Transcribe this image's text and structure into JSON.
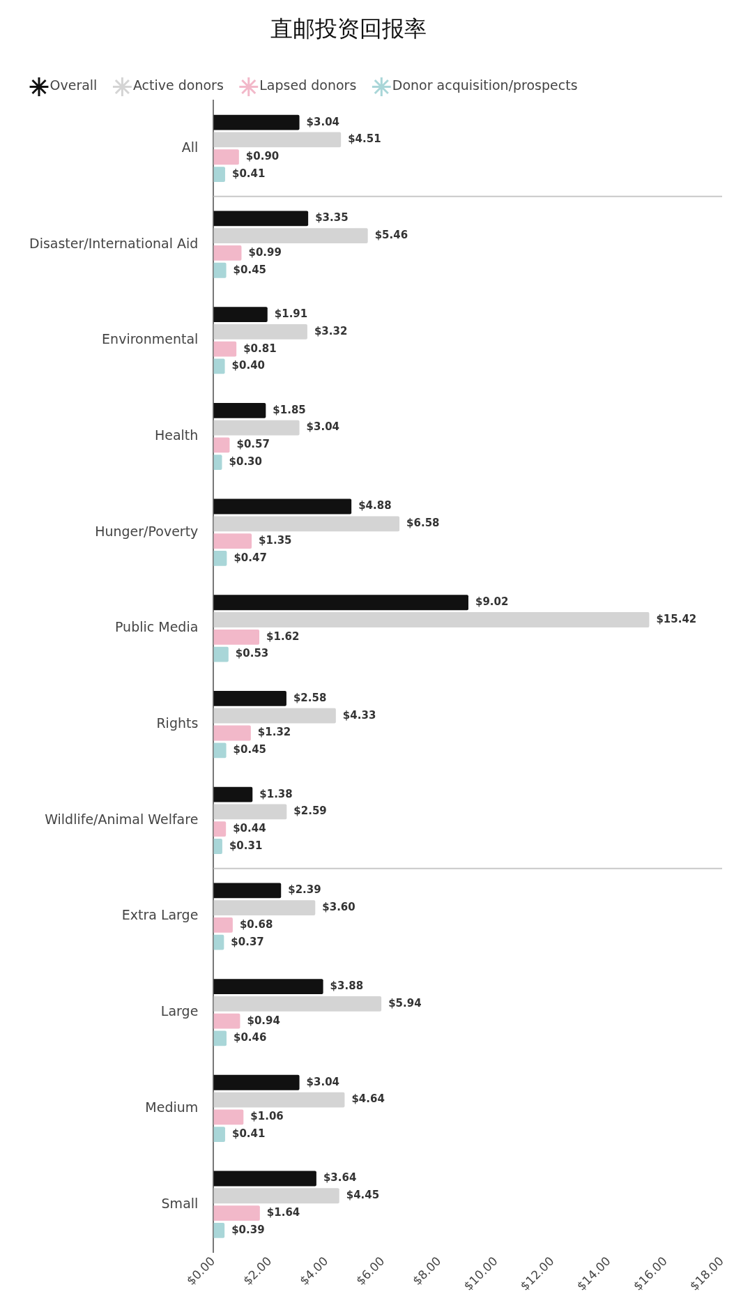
{
  "chart_data": {
    "type": "bar",
    "orientation": "horizontal",
    "title": "直邮投资回报率",
    "legend": "top",
    "categories": [
      "All",
      "Disaster/International Aid",
      "Environmental",
      "Health",
      "Hunger/Poverty",
      "Public Media",
      "Rights",
      "Wildlife/Animal Welfare",
      "Extra Large",
      "Large",
      "Medium",
      "Small"
    ],
    "series": [
      {
        "name": "Overall",
        "color": "#111111",
        "values": [
          3.04,
          3.35,
          1.91,
          1.85,
          4.88,
          9.02,
          2.58,
          1.38,
          2.39,
          3.88,
          3.04,
          3.64
        ],
        "value_labels": [
          "$3.04",
          "$3.35",
          "$1.91",
          "$1.85",
          "$4.88",
          "$9.02",
          "$2.58",
          "$1.38",
          "$2.39",
          "$3.88",
          "$3.04",
          "$3.64"
        ]
      },
      {
        "name": "Active donors",
        "color": "#d4d4d4",
        "values": [
          4.51,
          5.46,
          3.32,
          3.04,
          6.58,
          15.42,
          4.33,
          2.59,
          3.6,
          5.94,
          4.64,
          4.45
        ],
        "value_labels": [
          "$4.51",
          "$5.46",
          "$3.32",
          "$3.04",
          "$6.58",
          "$15.42",
          "$4.33",
          "$2.59",
          "$3.60",
          "$5.94",
          "$4.64",
          "$4.45"
        ]
      },
      {
        "name": "Lapsed donors",
        "color": "#f2b8c9",
        "values": [
          0.9,
          0.99,
          0.81,
          0.57,
          1.35,
          1.62,
          1.32,
          0.44,
          0.68,
          0.94,
          1.06,
          1.64
        ],
        "value_labels": [
          "$0.90",
          "$0.99",
          "$0.81",
          "$0.57",
          "$1.35",
          "$1.62",
          "$1.32",
          "$0.44",
          "$0.68",
          "$0.94",
          "$1.06",
          "$1.64"
        ]
      },
      {
        "name": "Donor acquisition/prospects",
        "color": "#a9d6d8",
        "values": [
          0.41,
          0.45,
          0.4,
          0.3,
          0.47,
          0.53,
          0.45,
          0.31,
          0.37,
          0.46,
          0.41,
          0.39
        ],
        "value_labels": [
          "$0.41",
          "$0.45",
          "$0.40",
          "$0.30",
          "$0.47",
          "$0.53",
          "$0.45",
          "$0.31",
          "$0.37",
          "$0.46",
          "$0.41",
          "$0.39"
        ]
      }
    ],
    "xlim": [
      0,
      18
    ],
    "xticks": [
      {
        "value": 0,
        "label": "$0.00"
      },
      {
        "value": 2,
        "label": "$2.00"
      },
      {
        "value": 4,
        "label": "$4.00"
      },
      {
        "value": 6,
        "label": "$6.00"
      },
      {
        "value": 8,
        "label": "$8.00"
      },
      {
        "value": 10,
        "label": "$10.00"
      },
      {
        "value": 12,
        "label": "$12.00"
      },
      {
        "value": 14,
        "label": "$14.00"
      },
      {
        "value": 16,
        "label": "$16.00"
      },
      {
        "value": 18,
        "label": "$18.00"
      }
    ],
    "grid": false
  }
}
